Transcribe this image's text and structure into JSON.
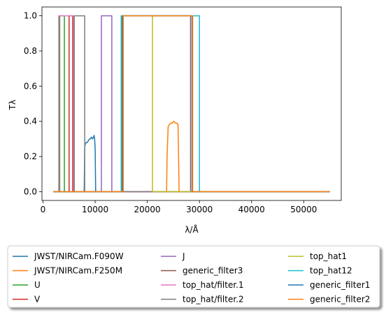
{
  "chart_data": {
    "type": "line",
    "title": "",
    "xlabel": "λ/Å",
    "ylabel": "Tλ",
    "xlim": [
      -200,
      57200
    ],
    "ylim": [
      -0.05,
      1.05
    ],
    "xticks": [
      0,
      10000,
      20000,
      30000,
      40000,
      50000
    ],
    "xtick_labels": [
      "0",
      "10000",
      "20000",
      "30000",
      "40000",
      "50000"
    ],
    "yticks": [
      0.0,
      0.2,
      0.4,
      0.6,
      0.8,
      1.0
    ],
    "ytick_labels": [
      "0.0",
      "0.2",
      "0.4",
      "0.6",
      "0.8",
      "1.0"
    ],
    "grid": false,
    "legend": {
      "placement": "below",
      "columns": 3
    },
    "series": [
      {
        "name": "JWST/NIRCam.F090W",
        "color": "#1f77b4",
        "x": [
          2000,
          7900,
          8000,
          8100,
          8300,
          8500,
          8700,
          8900,
          9100,
          9300,
          9500,
          9700,
          9800,
          9900,
          10000,
          10100,
          55000
        ],
        "y": [
          0,
          0,
          0.25,
          0.27,
          0.28,
          0.28,
          0.29,
          0.3,
          0.3,
          0.31,
          0.3,
          0.31,
          0.32,
          0.3,
          0.25,
          0,
          0
        ]
      },
      {
        "name": "JWST/NIRCam.F250M",
        "color": "#ff7f0e",
        "x": [
          2000,
          23700,
          23800,
          24000,
          24200,
          24500,
          24800,
          25100,
          25400,
          25700,
          25900,
          26000,
          26100,
          55000
        ],
        "y": [
          0,
          0,
          0.2,
          0.37,
          0.38,
          0.39,
          0.39,
          0.4,
          0.39,
          0.39,
          0.38,
          0.2,
          0,
          0
        ]
      },
      {
        "name": "U",
        "color": "#2ca02c",
        "x": [
          2000,
          3200,
          3200,
          4100,
          4100,
          55000
        ],
        "y": [
          0,
          0,
          1,
          1,
          0,
          0
        ]
      },
      {
        "name": "V",
        "color": "#d62728",
        "x": [
          2000,
          5000,
          5000,
          5700,
          5700,
          55000
        ],
        "y": [
          0,
          0,
          1,
          1,
          0,
          0
        ]
      },
      {
        "name": "J",
        "color": "#9467bd",
        "x": [
          2000,
          11200,
          11200,
          13200,
          13200,
          55000
        ],
        "y": [
          0,
          0,
          1,
          1,
          0,
          0
        ]
      },
      {
        "name": "generic_filter3",
        "color": "#8c564b",
        "x": [
          2000,
          15200,
          15200,
          28300,
          28300,
          55000
        ],
        "y": [
          0,
          0,
          1,
          1,
          0,
          0
        ]
      },
      {
        "name": "top_hat/filter.1",
        "color": "#e377c2",
        "x": [
          2000,
          3000,
          3000,
          5900,
          5900,
          55000
        ],
        "y": [
          0,
          0,
          1,
          1,
          0,
          0
        ]
      },
      {
        "name": "top_hat/filter.2",
        "color": "#7f7f7f",
        "x": [
          2000,
          6000,
          6000,
          8000,
          8000,
          55000
        ],
        "y": [
          0,
          0,
          1,
          1,
          0,
          0
        ]
      },
      {
        "name": "top_hat1",
        "color": "#bcbd22",
        "x": [
          2000,
          15000,
          15000,
          21000,
          21000,
          55000
        ],
        "y": [
          0,
          0,
          1,
          1,
          0,
          0
        ]
      },
      {
        "name": "top_hat12",
        "color": "#17becf",
        "x": [
          2000,
          15000,
          15000,
          30000,
          30000,
          55000
        ],
        "y": [
          0,
          0,
          1,
          1,
          0,
          0
        ]
      },
      {
        "name": "generic_filter1",
        "color": "#1f77b4",
        "x": [
          2000,
          15300,
          15300,
          28600,
          28600,
          55000
        ],
        "y": [
          0,
          0,
          1,
          1,
          0,
          0
        ]
      },
      {
        "name": "generic_filter2",
        "color": "#ff7f0e",
        "x": [
          2000,
          15400,
          15400,
          28700,
          28700,
          55000
        ],
        "y": [
          0,
          0,
          1,
          1,
          0,
          0
        ]
      }
    ]
  }
}
